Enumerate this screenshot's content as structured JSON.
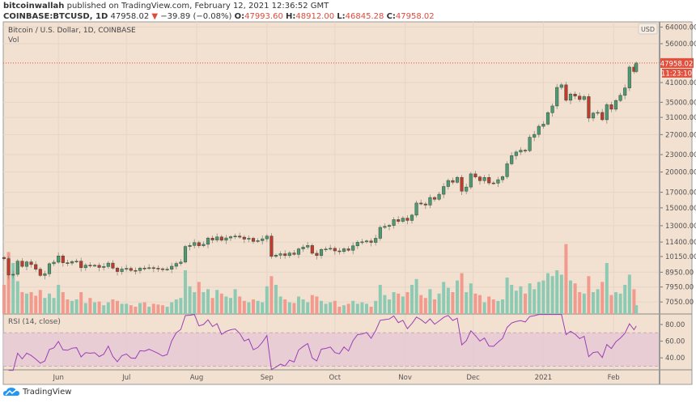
{
  "header": {
    "author": "bitcoinwallah",
    "published": "published on TradingView.com, February 12, 2021 12:36:52 GMT",
    "symbol": "COINBASE:BTCUSD, 1D",
    "last": "47958.02",
    "change": "−39.89 (−0.08%)",
    "o_label": "O:",
    "o": "47993.60",
    "h_label": "H:",
    "h": "48912.00",
    "l_label": "L:",
    "l": "46845.28",
    "c_label": "C:",
    "c": "47958.02"
  },
  "pane": {
    "title": "Bitcoin / U.S. Dollar, 1D, COINBASE",
    "vol_label": "Vol",
    "rsi_label": "RSI (14, close)"
  },
  "axis": {
    "currency": "USD",
    "price_ticks": [
      "64000.00",
      "56000.00",
      "41000.00",
      "35000.00",
      "31000.00",
      "27000.00",
      "23000.00",
      "20000.00",
      "17000.00",
      "15000.00",
      "13000.00",
      "11400.00",
      "10150.00",
      "8950.00",
      "7950.00",
      "7050.00"
    ],
    "rsi_ticks": [
      "80.00",
      "60.00",
      "40.00"
    ],
    "price_label": "47958.02",
    "countdown": "11:23:10",
    "months": [
      [
        "2020-06-01",
        "Jun"
      ],
      [
        "2020-07-01",
        "Jul"
      ],
      [
        "2020-08-01",
        "Aug"
      ],
      [
        "2020-09-01",
        "Sep"
      ],
      [
        "2020-10-01",
        "Oct"
      ],
      [
        "2020-11-01",
        "Nov"
      ],
      [
        "2020-12-01",
        "Dec"
      ],
      [
        "2021-01-01",
        "2021"
      ],
      [
        "2021-02-01",
        "Feb"
      ]
    ]
  },
  "colors": {
    "background": "#f2e0d0",
    "up": "#4f9a73",
    "down": "#c8382a",
    "vol_up": "#8ccab4",
    "vol_down": "#f29a8e",
    "rsi": "#9b3fb6",
    "rsi_band": "#e6c8d6",
    "price_line": "#e0503c"
  },
  "footer": {
    "brand": "TradingView",
    "logo_icon": "tradingview-cloud-icon"
  },
  "chart_data": {
    "type": "candlestick",
    "scale": "log",
    "columns": [
      "date",
      "close",
      "volume_relative"
    ],
    "candles": [
      [
        "2020-05-08",
        9980,
        40
      ],
      [
        "2020-05-10",
        8750,
        85
      ],
      [
        "2020-05-12",
        8800,
        70
      ],
      [
        "2020-05-14",
        9780,
        45
      ],
      [
        "2020-05-16",
        9380,
        30
      ],
      [
        "2020-05-18",
        9720,
        28
      ],
      [
        "2020-05-20",
        9520,
        30
      ],
      [
        "2020-05-22",
        9170,
        25
      ],
      [
        "2020-05-24",
        8720,
        33
      ],
      [
        "2020-05-26",
        8840,
        22
      ],
      [
        "2020-05-28",
        9580,
        28
      ],
      [
        "2020-05-30",
        9700,
        22
      ],
      [
        "2020-06-01",
        10200,
        40
      ],
      [
        "2020-06-03",
        9660,
        30
      ],
      [
        "2020-06-05",
        9630,
        20
      ],
      [
        "2020-06-07",
        9750,
        18
      ],
      [
        "2020-06-09",
        9780,
        20
      ],
      [
        "2020-06-11",
        9280,
        30
      ],
      [
        "2020-06-13",
        9470,
        15
      ],
      [
        "2020-06-15",
        9440,
        22
      ],
      [
        "2020-06-17",
        9460,
        16
      ],
      [
        "2020-06-19",
        9300,
        17
      ],
      [
        "2020-06-21",
        9370,
        12
      ],
      [
        "2020-06-23",
        9630,
        16
      ],
      [
        "2020-06-25",
        9250,
        20
      ],
      [
        "2020-06-27",
        9000,
        18
      ],
      [
        "2020-06-29",
        9180,
        14
      ],
      [
        "2020-07-01",
        9230,
        14
      ],
      [
        "2020-07-03",
        9080,
        12
      ],
      [
        "2020-07-05",
        9070,
        10
      ],
      [
        "2020-07-07",
        9250,
        15
      ],
      [
        "2020-07-09",
        9240,
        16
      ],
      [
        "2020-07-11",
        9280,
        10
      ],
      [
        "2020-07-13",
        9240,
        14
      ],
      [
        "2020-07-15",
        9200,
        13
      ],
      [
        "2020-07-17",
        9150,
        12
      ],
      [
        "2020-07-19",
        9170,
        10
      ],
      [
        "2020-07-21",
        9390,
        16
      ],
      [
        "2020-07-23",
        9600,
        20
      ],
      [
        "2020-07-25",
        9710,
        22
      ],
      [
        "2020-07-27",
        11000,
        60
      ],
      [
        "2020-07-29",
        11100,
        38
      ],
      [
        "2020-07-31",
        11350,
        30
      ],
      [
        "2020-08-02",
        11070,
        44
      ],
      [
        "2020-08-04",
        11200,
        30
      ],
      [
        "2020-08-06",
        11770,
        34
      ],
      [
        "2020-08-08",
        11590,
        22
      ],
      [
        "2020-08-10",
        11880,
        33
      ],
      [
        "2020-08-12",
        11570,
        28
      ],
      [
        "2020-08-14",
        11780,
        24
      ],
      [
        "2020-08-16",
        11900,
        22
      ],
      [
        "2020-08-18",
        11960,
        34
      ],
      [
        "2020-08-20",
        11860,
        24
      ],
      [
        "2020-08-22",
        11670,
        18
      ],
      [
        "2020-08-24",
        11750,
        16
      ],
      [
        "2020-08-26",
        11460,
        20
      ],
      [
        "2020-08-28",
        11530,
        18
      ],
      [
        "2020-08-30",
        11700,
        16
      ],
      [
        "2020-09-01",
        11960,
        38
      ],
      [
        "2020-09-03",
        10160,
        52
      ],
      [
        "2020-09-05",
        10260,
        40
      ],
      [
        "2020-09-07",
        10380,
        24
      ],
      [
        "2020-09-09",
        10230,
        20
      ],
      [
        "2020-09-11",
        10440,
        16
      ],
      [
        "2020-09-13",
        10330,
        15
      ],
      [
        "2020-09-15",
        10790,
        24
      ],
      [
        "2020-09-17",
        10950,
        20
      ],
      [
        "2020-09-19",
        11090,
        16
      ],
      [
        "2020-09-21",
        10420,
        26
      ],
      [
        "2020-09-23",
        10230,
        24
      ],
      [
        "2020-09-25",
        10740,
        18
      ],
      [
        "2020-09-27",
        10780,
        14
      ],
      [
        "2020-09-29",
        10840,
        16
      ],
      [
        "2020-10-01",
        10620,
        18
      ],
      [
        "2020-10-03",
        10570,
        10
      ],
      [
        "2020-10-05",
        10800,
        12
      ],
      [
        "2020-10-07",
        10670,
        14
      ],
      [
        "2020-10-09",
        11060,
        18
      ],
      [
        "2020-10-11",
        11380,
        14
      ],
      [
        "2020-10-13",
        11420,
        16
      ],
      [
        "2020-10-15",
        11500,
        14
      ],
      [
        "2020-10-17",
        11370,
        10
      ],
      [
        "2020-10-19",
        11750,
        18
      ],
      [
        "2020-10-21",
        12820,
        40
      ],
      [
        "2020-10-23",
        12930,
        26
      ],
      [
        "2020-10-25",
        13030,
        20
      ],
      [
        "2020-10-27",
        13650,
        30
      ],
      [
        "2020-10-29",
        13460,
        28
      ],
      [
        "2020-10-31",
        13810,
        24
      ],
      [
        "2020-11-02",
        13560,
        30
      ],
      [
        "2020-11-04",
        14150,
        40
      ],
      [
        "2020-11-06",
        15590,
        48
      ],
      [
        "2020-11-08",
        15480,
        26
      ],
      [
        "2020-11-10",
        15340,
        22
      ],
      [
        "2020-11-12",
        16300,
        34
      ],
      [
        "2020-11-14",
        16070,
        20
      ],
      [
        "2020-11-16",
        16730,
        28
      ],
      [
        "2020-11-18",
        17800,
        44
      ],
      [
        "2020-11-20",
        18680,
        36
      ],
      [
        "2020-11-22",
        18420,
        30
      ],
      [
        "2020-11-24",
        19160,
        46
      ],
      [
        "2020-11-26",
        17150,
        56
      ],
      [
        "2020-11-28",
        17730,
        30
      ],
      [
        "2020-11-30",
        19700,
        42
      ],
      [
        "2020-12-02",
        19220,
        28
      ],
      [
        "2020-12-04",
        18660,
        26
      ],
      [
        "2020-12-06",
        19150,
        16
      ],
      [
        "2020-12-08",
        18320,
        24
      ],
      [
        "2020-12-10",
        18290,
        20
      ],
      [
        "2020-12-12",
        18800,
        18
      ],
      [
        "2020-12-14",
        19270,
        20
      ],
      [
        "2020-12-16",
        21360,
        50
      ],
      [
        "2020-12-18",
        22800,
        40
      ],
      [
        "2020-12-20",
        23480,
        32
      ],
      [
        "2020-12-22",
        23830,
        38
      ],
      [
        "2020-12-24",
        23730,
        28
      ],
      [
        "2020-12-26",
        26440,
        42
      ],
      [
        "2020-12-28",
        27040,
        34
      ],
      [
        "2020-12-30",
        28870,
        44
      ],
      [
        "2021-01-01",
        29370,
        46
      ],
      [
        "2021-01-03",
        32190,
        56
      ],
      [
        "2021-01-05",
        33980,
        52
      ],
      [
        "2021-01-07",
        39430,
        60
      ],
      [
        "2021-01-09",
        40250,
        54
      ],
      [
        "2021-01-11",
        35570,
        96
      ],
      [
        "2021-01-13",
        37390,
        46
      ],
      [
        "2021-01-15",
        36770,
        42
      ],
      [
        "2021-01-17",
        35790,
        30
      ],
      [
        "2021-01-19",
        36630,
        28
      ],
      [
        "2021-01-21",
        30830,
        52
      ],
      [
        "2021-01-23",
        32070,
        30
      ],
      [
        "2021-01-25",
        32260,
        34
      ],
      [
        "2021-01-27",
        30430,
        44
      ],
      [
        "2021-01-29",
        34320,
        70
      ],
      [
        "2021-01-31",
        33110,
        26
      ],
      [
        "2021-02-02",
        35500,
        30
      ],
      [
        "2021-02-04",
        37000,
        28
      ],
      [
        "2021-02-06",
        39260,
        40
      ],
      [
        "2021-02-08",
        46400,
        54
      ],
      [
        "2021-02-10",
        44800,
        34
      ],
      [
        "2021-02-11",
        47958,
        12
      ]
    ]
  }
}
